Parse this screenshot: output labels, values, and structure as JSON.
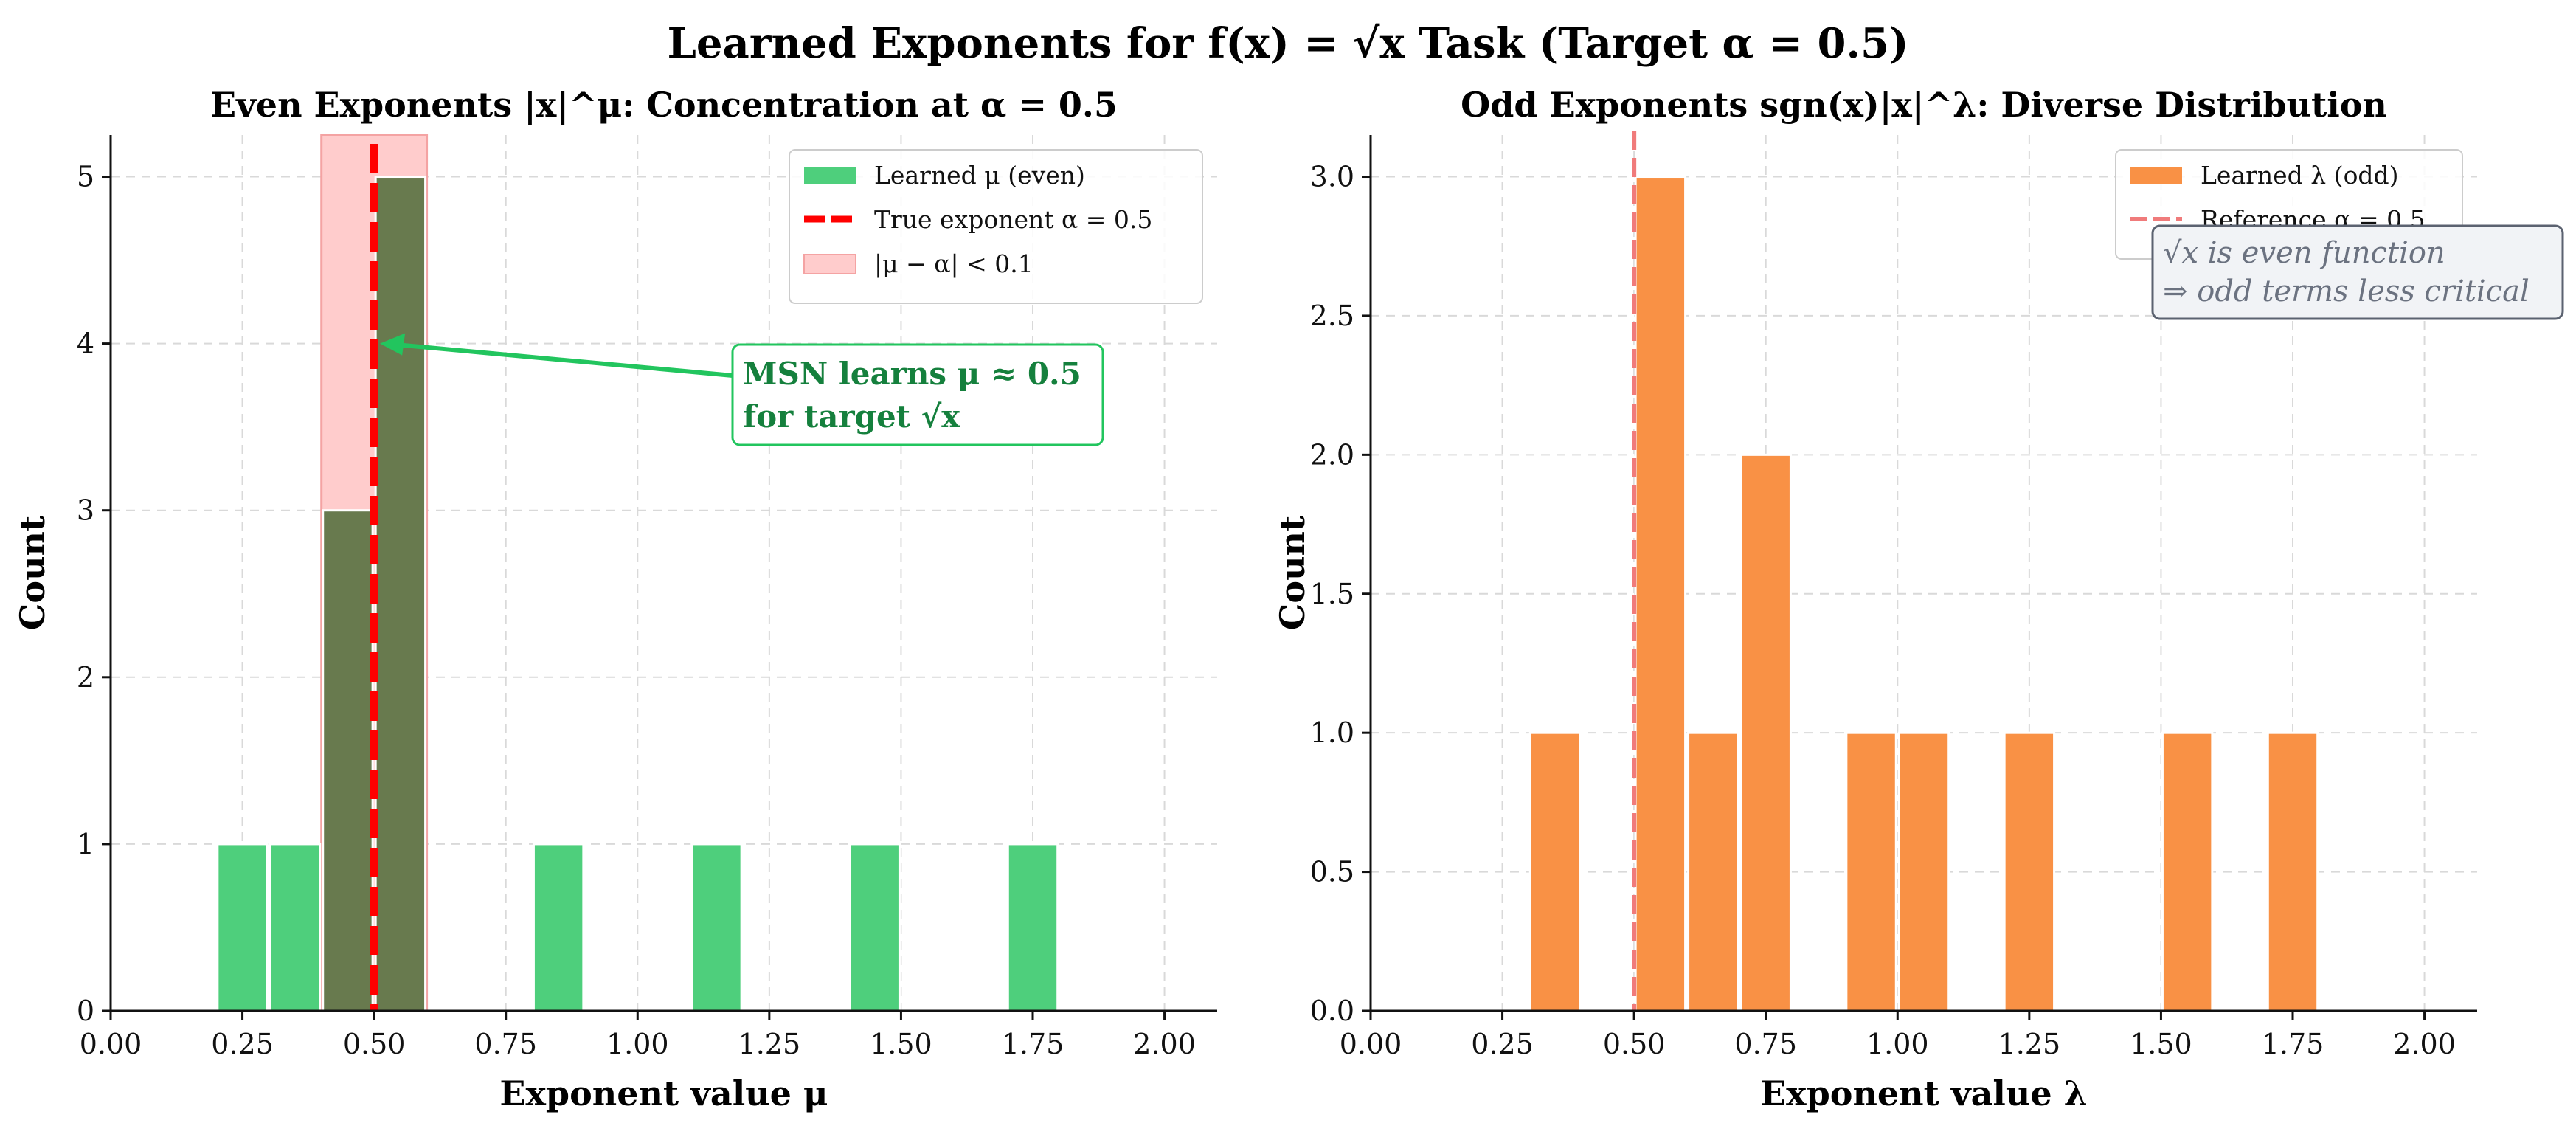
{
  "figure": {
    "suptitle": "Learned Exponents for f(x) = √x Task (Target α = 0.5)"
  },
  "chart_data": [
    {
      "type": "bar",
      "title": "Even Exponents |x|^μ: Concentration at α = 0.5",
      "xlabel": "Exponent value μ",
      "ylabel": "Count",
      "xlim": [
        0.0,
        2.1
      ],
      "ylim": [
        0,
        5.25
      ],
      "xticks": [
        "0.00",
        "0.25",
        "0.50",
        "0.75",
        "1.00",
        "1.25",
        "1.50",
        "1.75",
        "2.00"
      ],
      "yticks": [
        "0",
        "1",
        "2",
        "3",
        "4",
        "5"
      ],
      "bin_width": 0.1,
      "bins": [
        {
          "start": 0.2,
          "count": 1
        },
        {
          "start": 0.3,
          "count": 1
        },
        {
          "start": 0.4,
          "count": 3
        },
        {
          "start": 0.5,
          "count": 5
        },
        {
          "start": 0.8,
          "count": 1
        },
        {
          "start": 1.1,
          "count": 1
        },
        {
          "start": 1.4,
          "count": 1
        },
        {
          "start": 1.7,
          "count": 1
        }
      ],
      "highlight_band": [
        0.4,
        0.6
      ],
      "true_exponent": 0.5,
      "bar_color": "#4ecf7c",
      "highlight_bar_color": "#687a4e",
      "band_color": "#ffcccc",
      "line_color": "#ff0000",
      "legend": {
        "position": "top-right",
        "entries": [
          "Learned μ (even)",
          "True exponent α = 0.5",
          "|μ − α| < 0.1"
        ]
      },
      "annotation": {
        "lines": [
          "MSN learns μ ≈ 0.5",
          "for target √x"
        ],
        "points_to": {
          "x": 0.5,
          "y": 4
        },
        "color": "#22c55e"
      }
    },
    {
      "type": "bar",
      "title": "Odd Exponents sgn(x)|x|^λ: Diverse Distribution",
      "xlabel": "Exponent value λ",
      "ylabel": "Count",
      "xlim": [
        0.0,
        2.1
      ],
      "ylim": [
        0,
        3.15
      ],
      "xticks": [
        "0.00",
        "0.25",
        "0.50",
        "0.75",
        "1.00",
        "1.25",
        "1.50",
        "1.75",
        "2.00"
      ],
      "yticks": [
        "0.0",
        "0.5",
        "1.0",
        "1.5",
        "2.0",
        "2.5",
        "3.0"
      ],
      "bin_width": 0.1,
      "bins": [
        {
          "start": 0.3,
          "count": 1
        },
        {
          "start": 0.5,
          "count": 3
        },
        {
          "start": 0.6,
          "count": 1
        },
        {
          "start": 0.7,
          "count": 2
        },
        {
          "start": 0.9,
          "count": 1
        },
        {
          "start": 1.0,
          "count": 1
        },
        {
          "start": 1.2,
          "count": 1
        },
        {
          "start": 1.5,
          "count": 1
        },
        {
          "start": 1.7,
          "count": 1
        }
      ],
      "reference_exponent": 0.5,
      "bar_color": "#f99145",
      "line_color": "#f07b7b",
      "legend": {
        "position": "top-right",
        "entries": [
          "Learned λ (odd)",
          "Reference α = 0.5"
        ]
      },
      "note": {
        "lines": [
          "√x is even function",
          "⇒ odd terms less critical"
        ]
      }
    }
  ]
}
